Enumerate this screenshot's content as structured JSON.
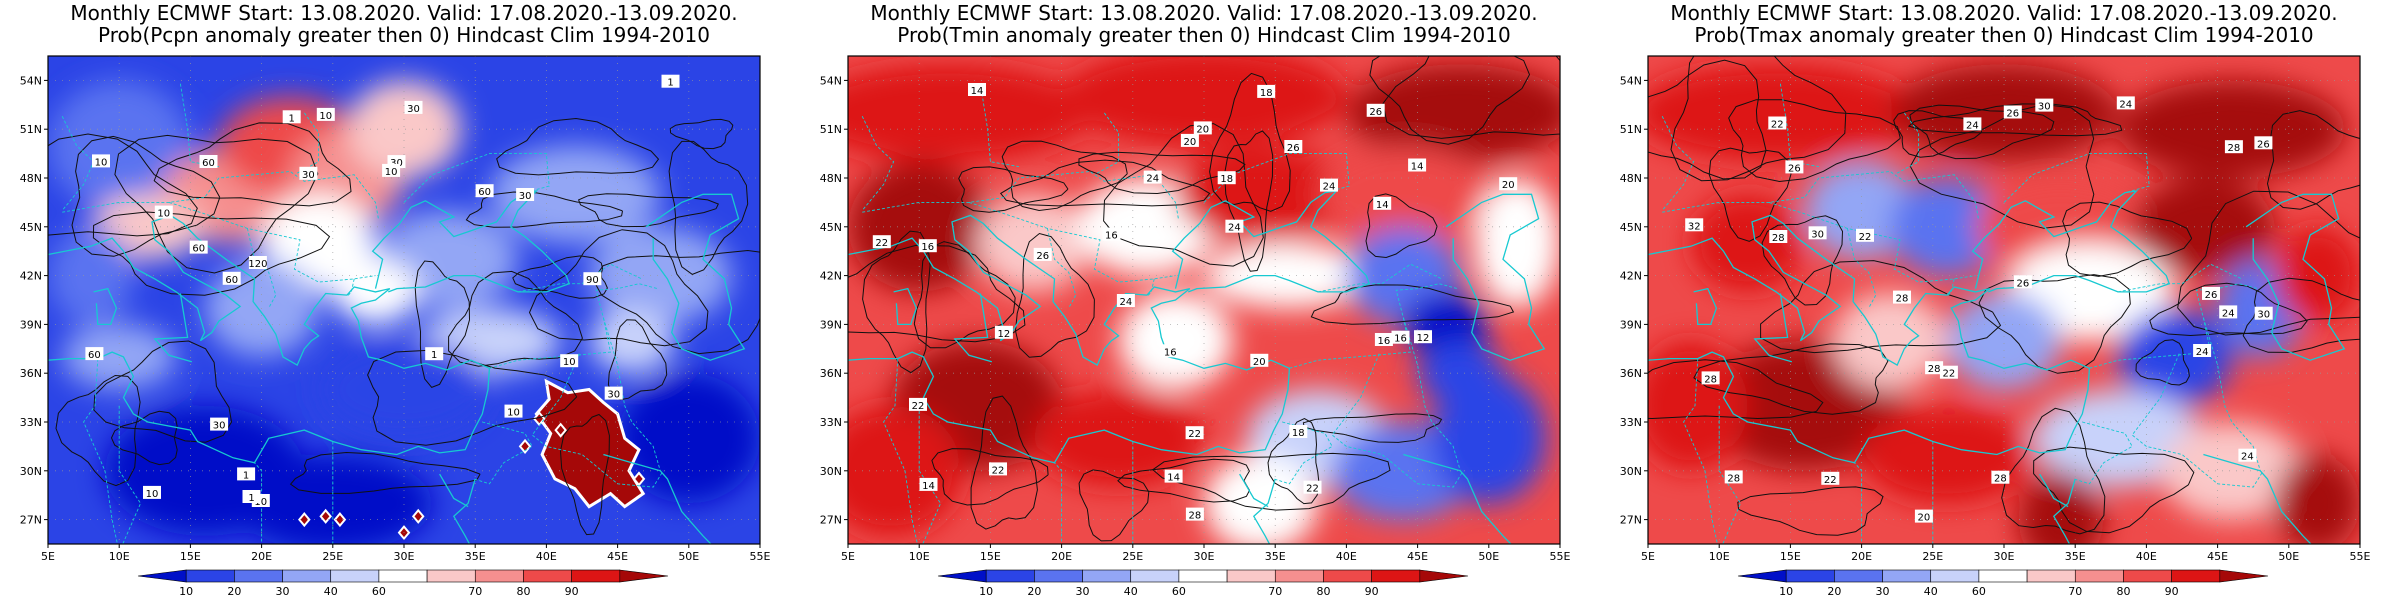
{
  "panels": [
    {
      "title_line1": "Monthly ECMWF Start: 13.08.2020. Valid: 17.08.2020.-13.09.2020.",
      "title_line2": "Prob(Pcpn anomaly greater then 0) Hindcast Clim 1994-2010",
      "variable": "precipitation",
      "contour_labels": [
        "60",
        "90",
        "60",
        "30",
        "60",
        "30",
        "10",
        "120",
        "10",
        "30",
        "10",
        "10",
        "30",
        "10",
        "1",
        "60",
        "30",
        "10",
        "1",
        "10",
        "1",
        "60",
        "30",
        "1",
        "1",
        "10"
      ]
    },
    {
      "title_line1": "Monthly ECMWF Start: 13.08.2020. Valid: 17.08.2020.-13.09.2020.",
      "title_line2": "Prob(Tmin anomaly greater then 0) Hindcast Clim 1994-2010",
      "variable": "tmin",
      "contour_labels": [
        "14",
        "14",
        "14",
        "16",
        "12",
        "14",
        "16",
        "18",
        "20",
        "14",
        "16",
        "22",
        "20",
        "18",
        "12",
        "16",
        "24",
        "22",
        "26",
        "20",
        "24",
        "28",
        "26",
        "24",
        "22",
        "22",
        "20",
        "18",
        "16",
        "24",
        "26",
        "22"
      ]
    },
    {
      "title_line1": "Monthly ECMWF Start: 13.08.2020. Valid: 17.08.2020.-13.09.2020.",
      "title_line2": "Prob(Tmax anomaly greater then 0) Hindcast Clim 1994-2010",
      "variable": "tmax",
      "contour_labels": [
        "22",
        "22",
        "24",
        "22",
        "26",
        "28",
        "26",
        "24",
        "22",
        "20",
        "24",
        "28",
        "26",
        "28",
        "30",
        "28",
        "26",
        "24",
        "28",
        "30",
        "32",
        "26",
        "28",
        "30",
        "28",
        "24"
      ]
    }
  ],
  "map_extent": {
    "lon_range": [
      5,
      55
    ],
    "lat_range": [
      25.5,
      55.5
    ]
  },
  "x_ticks": [
    "5E",
    "10E",
    "15E",
    "20E",
    "25E",
    "30E",
    "35E",
    "40E",
    "45E",
    "50E",
    "55E"
  ],
  "y_ticks": [
    "27N",
    "30N",
    "33N",
    "36N",
    "39N",
    "42N",
    "45N",
    "48N",
    "51N",
    "54N"
  ],
  "colorbar": {
    "labels": [
      "10",
      "20",
      "30",
      "40",
      "60",
      "70",
      "80",
      "90"
    ],
    "colors": [
      "#0010c8",
      "#2b44e6",
      "#5a73f0",
      "#93a6f5",
      "#c8d2fa",
      "#ffffff",
      "#fac8c8",
      "#f58f8f",
      "#ee4a4a",
      "#dd1515",
      "#a50808"
    ]
  },
  "colors": {
    "coast": "#17c9d1",
    "contour": "#111111",
    "frame": "#000000"
  }
}
